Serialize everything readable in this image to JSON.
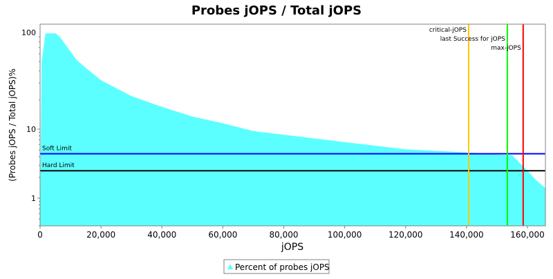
{
  "chart_data": {
    "type": "area",
    "title": "Probes jOPS / Total jOPS",
    "xlabel": "jOPS",
    "ylabel": "(Probes jOPS / Total jOPS)%",
    "y_scale": "log",
    "xlim": [
      0,
      165900
    ],
    "ylim": [
      0.4,
      130
    ],
    "x_ticks": [
      0,
      20000,
      40000,
      60000,
      80000,
      100000,
      120000,
      140000,
      160000
    ],
    "x_tick_labels": [
      "0",
      "20,000",
      "40,000",
      "60,000",
      "80,000",
      "100,000",
      "120,000",
      "140,000",
      "160,000"
    ],
    "y_ticks": [
      1,
      10,
      100
    ],
    "y_tick_labels": [
      "1",
      "10",
      "100"
    ],
    "series": [
      {
        "name": "Percent of probes jOPS",
        "color": "#5cffff",
        "x": [
          0,
          500,
          1800,
          5000,
          6500,
          9000,
          12000,
          15000,
          20000,
          30000,
          40000,
          50000,
          60000,
          70000,
          80000,
          100000,
          120000,
          140000,
          150000,
          155000,
          157000,
          160000,
          163000,
          165900
        ],
        "y": [
          0.4,
          50,
          98,
          98,
          90,
          70,
          52,
          43,
          32,
          22,
          17,
          13.5,
          11.5,
          9.4,
          8.3,
          6.5,
          5.1,
          4.6,
          4.3,
          4.2,
          3.4,
          2.5,
          1.8,
          1.4
        ]
      }
    ],
    "horizontal_markers": [
      {
        "label": "Soft Limit",
        "value": 4.4,
        "color": "#0000ff"
      },
      {
        "label": "Hard Limit",
        "value": 2.5,
        "color": "#000000"
      }
    ],
    "vertical_markers": [
      {
        "label": "critical-jOPS",
        "value": 140700,
        "color": "#ffc800"
      },
      {
        "label": "last Success for jOPS",
        "value": 153400,
        "color": "#00ff00"
      },
      {
        "label": "max-jOPS",
        "value": 158600,
        "color": "#ff0000"
      }
    ],
    "legend": "bottom",
    "grid": false
  }
}
